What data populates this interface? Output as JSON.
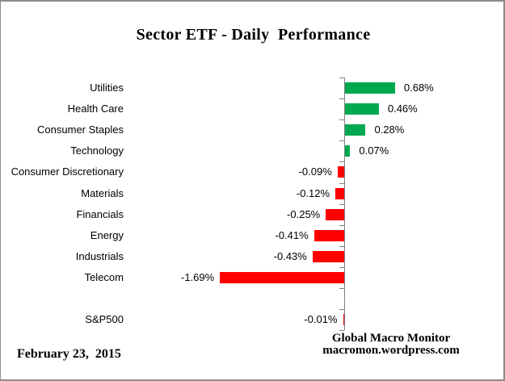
{
  "chart_data": {
    "type": "bar",
    "orientation": "horizontal",
    "title": "Sector ETF - Daily  Performance",
    "categories": [
      "Utilities",
      "Health Care",
      "Consumer Staples",
      "Technology",
      "Consumer Discretionary",
      "Materials",
      "Financials",
      "Energy",
      "Industrials",
      "Telecom",
      "",
      "S&P500"
    ],
    "rows": [
      {
        "label": "Utilities",
        "value": 0.68,
        "display": "0.68%"
      },
      {
        "label": "Health Care",
        "value": 0.46,
        "display": "0.46%"
      },
      {
        "label": "Consumer Staples",
        "value": 0.28,
        "display": "0.28%"
      },
      {
        "label": "Technology",
        "value": 0.07,
        "display": "0.07%"
      },
      {
        "label": "Consumer Discretionary",
        "value": -0.09,
        "display": "-0.09%"
      },
      {
        "label": "Materials",
        "value": -0.12,
        "display": "-0.12%"
      },
      {
        "label": "Financials",
        "value": -0.25,
        "display": "-0.25%"
      },
      {
        "label": "Energy",
        "value": -0.41,
        "display": "-0.41%"
      },
      {
        "label": "Industrials",
        "value": -0.43,
        "display": "-0.43%"
      },
      {
        "label": "Telecom",
        "value": -1.69,
        "display": "-1.69%"
      },
      {
        "label": "",
        "value": null,
        "display": ""
      },
      {
        "label": "S&P500",
        "value": -0.01,
        "display": "-0.01%"
      }
    ],
    "value_unit": "%",
    "positive_color": "#00A84F",
    "negative_color": "#FF0000",
    "axis_color": "#808080",
    "grid": false,
    "legend": false,
    "xlim": [
      -1.8,
      1.0
    ]
  },
  "footer": {
    "date": "February 23,  2015",
    "credit_line1": "Global Macro Monitor",
    "credit_line2": "macromon.wordpress.com"
  }
}
